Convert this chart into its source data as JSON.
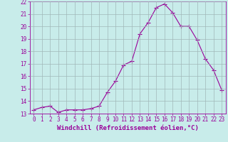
{
  "x": [
    0,
    1,
    2,
    3,
    4,
    5,
    6,
    7,
    8,
    9,
    10,
    11,
    12,
    13,
    14,
    15,
    16,
    17,
    18,
    19,
    20,
    21,
    22,
    23
  ],
  "y": [
    13.3,
    13.5,
    13.6,
    13.1,
    13.3,
    13.3,
    13.3,
    13.4,
    13.6,
    14.7,
    15.6,
    16.9,
    17.2,
    19.4,
    20.3,
    21.5,
    21.8,
    21.1,
    20.0,
    20.0,
    18.9,
    17.4,
    16.5,
    14.9
  ],
  "line_color": "#990099",
  "marker": "+",
  "marker_size": 4,
  "bg_color": "#c8ecea",
  "grid_color": "#a0b8b8",
  "xlabel": "Windchill (Refroidissement éolien,°C)",
  "ylim": [
    13,
    22
  ],
  "xlim": [
    -0.5,
    23.5
  ],
  "yticks": [
    13,
    14,
    15,
    16,
    17,
    18,
    19,
    20,
    21,
    22
  ],
  "xticks": [
    0,
    1,
    2,
    3,
    4,
    5,
    6,
    7,
    8,
    9,
    10,
    11,
    12,
    13,
    14,
    15,
    16,
    17,
    18,
    19,
    20,
    21,
    22,
    23
  ],
  "tick_color": "#990099",
  "label_color": "#990099",
  "tick_fontsize": 5.5,
  "xlabel_fontsize": 6.5
}
